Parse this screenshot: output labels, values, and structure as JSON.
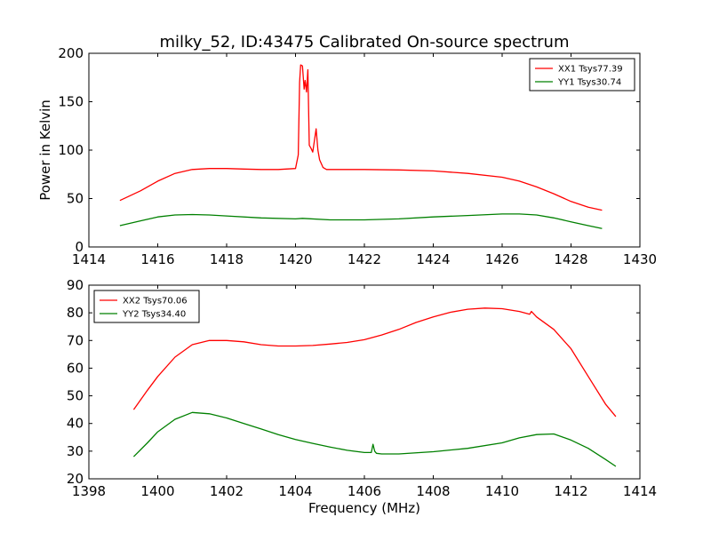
{
  "figure": {
    "title": "milky_52, ID:43475 Calibrated On-source spectrum",
    "ylabel": "Power in Kelvin",
    "xlabel": "Frequency (MHz)"
  },
  "chart_data": [
    {
      "type": "line",
      "title": "milky_52, ID:43475 Calibrated On-source spectrum",
      "ylabel": "Power in Kelvin",
      "xlabel": "",
      "xlim": [
        1414,
        1430
      ],
      "ylim": [
        0,
        200
      ],
      "xticks": [
        1414,
        1416,
        1418,
        1420,
        1422,
        1424,
        1426,
        1428,
        1430
      ],
      "yticks": [
        0,
        50,
        100,
        150,
        200
      ],
      "legend_position": "top-right",
      "series": [
        {
          "name": "XX1 Tsys77.39",
          "color": "#ff0000",
          "x": [
            1414.9,
            1415.5,
            1416.0,
            1416.5,
            1417.0,
            1417.5,
            1418.0,
            1418.5,
            1419.0,
            1419.5,
            1420.0,
            1420.08,
            1420.12,
            1420.15,
            1420.2,
            1420.25,
            1420.28,
            1420.32,
            1420.36,
            1420.4,
            1420.45,
            1420.5,
            1420.55,
            1420.6,
            1420.65,
            1420.7,
            1420.8,
            1420.9,
            1421.0,
            1421.5,
            1422.0,
            1423.0,
            1424.0,
            1425.0,
            1426.0,
            1426.5,
            1427.0,
            1427.5,
            1428.0,
            1428.5,
            1428.9
          ],
          "values": [
            48,
            58,
            68,
            76,
            80,
            81,
            81,
            80.5,
            80,
            80,
            81,
            95,
            170,
            188,
            187,
            163,
            172,
            160,
            183,
            105,
            102,
            98,
            110,
            122,
            100,
            90,
            82,
            80,
            80,
            80,
            80,
            79.5,
            78.5,
            76,
            72,
            68,
            62,
            55,
            47,
            41,
            38
          ]
        },
        {
          "name": "YY1 Tsys30.74",
          "color": "#008000",
          "x": [
            1414.9,
            1415.5,
            1416.0,
            1416.5,
            1417.0,
            1417.5,
            1418.0,
            1419.0,
            1420.0,
            1420.2,
            1421.0,
            1422.0,
            1423.0,
            1424.0,
            1425.0,
            1426.0,
            1426.5,
            1427.0,
            1427.5,
            1428.0,
            1428.5,
            1428.9
          ],
          "values": [
            22,
            27,
            31,
            33,
            33.5,
            33,
            32,
            30,
            29,
            29.5,
            28,
            28,
            29,
            31,
            32.5,
            34,
            34,
            33,
            30,
            26,
            22,
            19
          ]
        }
      ]
    },
    {
      "type": "line",
      "title": "",
      "ylabel": "",
      "xlabel": "Frequency (MHz)",
      "xlim": [
        1398,
        1414
      ],
      "ylim": [
        20,
        90
      ],
      "xticks": [
        1398,
        1400,
        1402,
        1404,
        1406,
        1408,
        1410,
        1412,
        1414
      ],
      "yticks": [
        20,
        30,
        40,
        50,
        60,
        70,
        80,
        90
      ],
      "legend_position": "top-left",
      "series": [
        {
          "name": "XX2 Tsys70.06",
          "color": "#ff0000",
          "x": [
            1399.3,
            1399.7,
            1400.0,
            1400.5,
            1401.0,
            1401.5,
            1402.0,
            1402.5,
            1403.0,
            1403.5,
            1404.0,
            1404.5,
            1405.0,
            1405.5,
            1406.0,
            1406.5,
            1407.0,
            1407.5,
            1408.0,
            1408.5,
            1409.0,
            1409.5,
            1410.0,
            1410.5,
            1410.8,
            1410.85,
            1411.0,
            1411.5,
            1412.0,
            1412.5,
            1413.0,
            1413.3
          ],
          "values": [
            45,
            52,
            57,
            64,
            68.5,
            70,
            70,
            69.5,
            68.5,
            68,
            68,
            68.2,
            68.7,
            69.3,
            70.3,
            72,
            74,
            76.5,
            78.5,
            80.2,
            81.3,
            81.7,
            81.5,
            80.5,
            79.5,
            80.5,
            78.5,
            74,
            67,
            57,
            47,
            42.5
          ]
        },
        {
          "name": "YY2 Tsys34.40",
          "color": "#008000",
          "x": [
            1399.3,
            1399.7,
            1400.0,
            1400.5,
            1401.0,
            1401.5,
            1402.0,
            1402.5,
            1403.0,
            1403.5,
            1404.0,
            1404.5,
            1405.0,
            1405.5,
            1406.0,
            1406.2,
            1406.25,
            1406.3,
            1406.35,
            1406.5,
            1407.0,
            1408.0,
            1409.0,
            1410.0,
            1410.5,
            1411.0,
            1411.5,
            1412.0,
            1412.5,
            1413.0,
            1413.3
          ],
          "values": [
            28,
            33,
            37,
            41.5,
            44,
            43.5,
            42,
            40,
            38,
            36,
            34.2,
            32.8,
            31.5,
            30.3,
            29.5,
            29.5,
            32.5,
            30,
            29.2,
            29,
            29,
            29.8,
            31,
            33,
            34.8,
            36,
            36.2,
            34,
            31,
            27,
            24.5
          ]
        }
      ]
    }
  ]
}
